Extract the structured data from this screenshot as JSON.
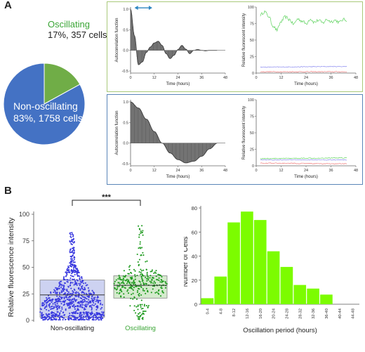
{
  "panel_labels": {
    "a": "A",
    "b": "B"
  },
  "colors": {
    "pie_non": "#4472c4",
    "pie_osc": "#70ad47",
    "osc_text": "#3aa535",
    "box_top": "#a9c97a",
    "box_bottom": "#5a86b8",
    "acf_fill": "#666666",
    "arrow": "#2e86c1",
    "green_trace": "#5fd35f",
    "blue_trace": "#8c8cf0",
    "red_trace": "#f07a7a",
    "violin_non": "#3a3adf",
    "violin_osc": "#1e9a1e",
    "box_non_fill": "#c8cdf0",
    "box_osc_fill": "#cfe8c8",
    "bar": "#7cfc00",
    "bar_edge": "#ffffff"
  },
  "pie": {
    "oscillating": {
      "label": "Oscillating",
      "detail": "17%, 357 cells",
      "fraction": 0.17
    },
    "non_oscillating": {
      "label": "Non-oscillating",
      "detail": "83%, 1758 cells",
      "fraction": 0.83
    }
  },
  "acf_axes": {
    "ylabel": "Autocorrelation function",
    "xlabel": "Time (hours)",
    "xticks": [
      "0",
      "12",
      "24",
      "36",
      "48"
    ],
    "top_yticks": [
      "1.0",
      "0.5",
      "0.0",
      "-0.5"
    ],
    "bottom_yticks": [
      "1.0",
      "0.5",
      "0.0",
      "-0.5"
    ]
  },
  "fluor_axes": {
    "ylabel": "Relative fluorescent intensity",
    "xlabel": "Time (hours)",
    "xticks": [
      "0",
      "12",
      "24",
      "36",
      "48"
    ],
    "yticks": [
      "0",
      "25",
      "50",
      "75",
      "100"
    ]
  },
  "violin": {
    "ylabel": "Relative fluorescence intensity",
    "yticks": [
      "0",
      "25",
      "50",
      "75",
      "100"
    ],
    "categories": [
      "Non-oscillating",
      "Oscillating"
    ],
    "significance": "***"
  },
  "histogram": {
    "ylabel": "Number of Cells",
    "xlabel": "Oscillation period (hours)",
    "yticks": [
      "0",
      "20",
      "40",
      "60",
      "80"
    ]
  },
  "chart_data": [
    {
      "type": "pie",
      "categories": [
        "Oscillating",
        "Non-oscillating"
      ],
      "values": [
        17,
        83
      ],
      "counts": [
        357,
        1758
      ]
    },
    {
      "type": "line",
      "subtype": "autocorrelation",
      "xlabel": "Time (hours)",
      "ylabel": "Autocorrelation function",
      "xlim": [
        0,
        48
      ],
      "ylim": [
        -0.55,
        1.05
      ],
      "annotation": "double-headed arrow marking one period near the top, about 2 to 10 hours",
      "series": [
        {
          "x": [
            0,
            2,
            4,
            6,
            8,
            10,
            12,
            14,
            16,
            18,
            20,
            22,
            24,
            26,
            28,
            30,
            32,
            34,
            36,
            38,
            40,
            42,
            44
          ],
          "values": [
            1.0,
            0.35,
            -0.35,
            -0.28,
            -0.05,
            0.08,
            0.18,
            0.22,
            0.12,
            -0.08,
            -0.2,
            -0.12,
            0.02,
            0.12,
            0.03,
            -0.08,
            0.0,
            0.02,
            0.0,
            -0.01,
            0.0,
            0.0,
            0.0
          ]
        }
      ]
    },
    {
      "type": "line",
      "xlabel": "Time (hours)",
      "ylabel": "Relative fluorescent intensity",
      "xlim": [
        0,
        48
      ],
      "ylim": [
        0,
        100
      ],
      "series": [
        {
          "color": "green",
          "x": [
            2,
            4,
            6,
            8,
            10,
            12,
            14,
            16,
            18,
            20,
            22,
            24,
            26,
            28,
            30,
            32,
            34,
            36,
            38,
            40,
            42,
            44
          ],
          "values": [
            88,
            93,
            86,
            72,
            65,
            78,
            85,
            81,
            74,
            82,
            79,
            75,
            82,
            77,
            80,
            76,
            81,
            78,
            80,
            77,
            81,
            80
          ]
        },
        {
          "color": "blue",
          "x": [
            2,
            44
          ],
          "values": [
            9,
            10
          ]
        },
        {
          "color": "red",
          "x": [
            2,
            44
          ],
          "values": [
            2,
            2
          ]
        }
      ]
    },
    {
      "type": "line",
      "subtype": "autocorrelation",
      "xlabel": "Time (hours)",
      "ylabel": "Autocorrelation function",
      "xlim": [
        0,
        48
      ],
      "ylim": [
        -0.55,
        1.05
      ],
      "series": [
        {
          "x": [
            0,
            4,
            8,
            12,
            16,
            20,
            24,
            28,
            32,
            36,
            40,
            44
          ],
          "values": [
            1.0,
            0.85,
            0.58,
            0.28,
            0.0,
            -0.24,
            -0.4,
            -0.48,
            -0.44,
            -0.32,
            -0.14,
            0.0
          ]
        }
      ]
    },
    {
      "type": "line",
      "xlabel": "Time (hours)",
      "ylabel": "Relative fluorescent intensity",
      "xlim": [
        0,
        48
      ],
      "ylim": [
        0,
        100
      ],
      "series": [
        {
          "color": "green",
          "x": [
            2,
            44
          ],
          "values": [
            11,
            12
          ]
        },
        {
          "color": "blue",
          "x": [
            2,
            44
          ],
          "values": [
            9,
            9
          ]
        },
        {
          "color": "red",
          "x": [
            2,
            44
          ],
          "values": [
            4,
            3
          ]
        }
      ]
    },
    {
      "type": "scatter",
      "subtype": "violin-box",
      "categories": [
        "Non-oscillating",
        "Oscillating"
      ],
      "ylabel": "Relative fluorescence intensity",
      "ylim": [
        0,
        100
      ],
      "box": [
        {
          "name": "Non-oscillating",
          "q1": 3,
          "median": 24,
          "q3": 38,
          "max": 85
        },
        {
          "name": "Oscillating",
          "q1": 21,
          "median": 33,
          "q3": 42,
          "max": 90
        }
      ],
      "significance": "***"
    },
    {
      "type": "bar",
      "xlabel": "Oscillation period (hours)",
      "ylabel": "Number of Cells",
      "ylim": [
        0,
        80
      ],
      "categories": [
        "0-4",
        "4-8",
        "8-12",
        "12-16",
        "16-20",
        "20-24",
        "24-28",
        "28-32",
        "32-36",
        "36-40",
        "40-44",
        "44-48"
      ],
      "values": [
        5,
        23,
        68,
        77,
        70,
        44,
        31,
        16,
        13,
        8,
        0,
        0
      ]
    }
  ]
}
